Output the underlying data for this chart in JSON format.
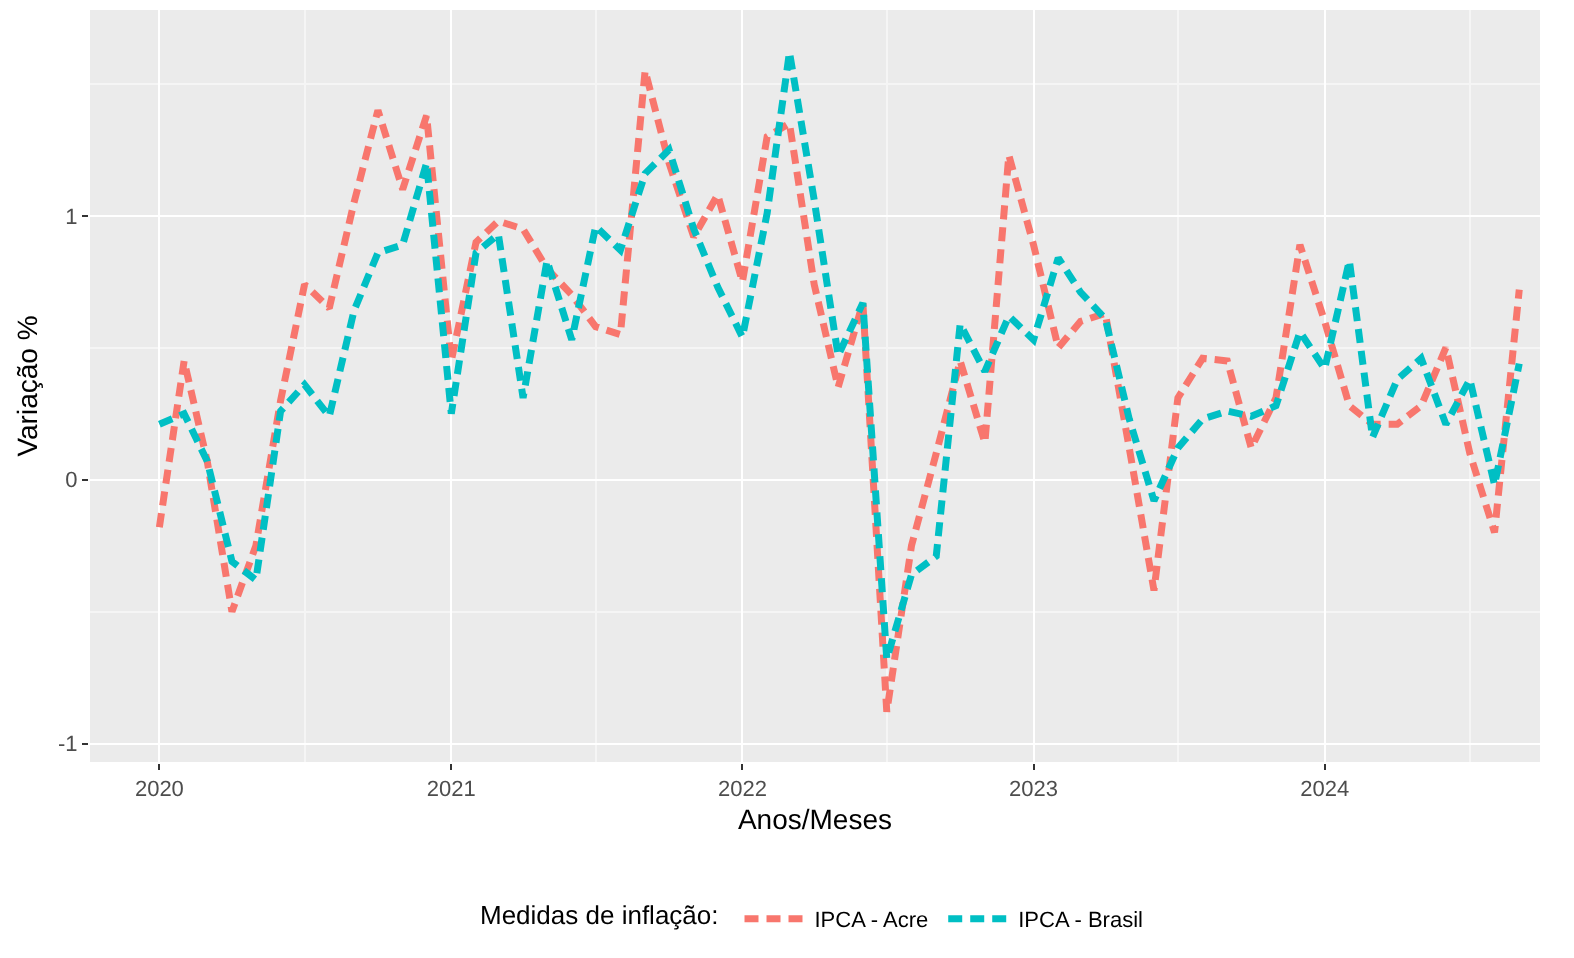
{
  "chart_data": {
    "type": "line",
    "xlabel": "Anos/Meses",
    "ylabel": "Variação %",
    "legend_title": "Medidas de inflação:",
    "x": [
      "2020-01",
      "2020-02",
      "2020-03",
      "2020-04",
      "2020-05",
      "2020-06",
      "2020-07",
      "2020-08",
      "2020-09",
      "2020-10",
      "2020-11",
      "2020-12",
      "2021-01",
      "2021-02",
      "2021-03",
      "2021-04",
      "2021-05",
      "2021-06",
      "2021-07",
      "2021-08",
      "2021-09",
      "2021-10",
      "2021-11",
      "2021-12",
      "2022-01",
      "2022-02",
      "2022-03",
      "2022-04",
      "2022-05",
      "2022-06",
      "2022-07",
      "2022-08",
      "2022-09",
      "2022-10",
      "2022-11",
      "2022-12",
      "2023-01",
      "2023-02",
      "2023-03",
      "2023-04",
      "2023-05",
      "2023-06",
      "2023-07",
      "2023-08",
      "2023-09",
      "2023-10",
      "2023-11",
      "2023-12",
      "2024-01",
      "2024-02",
      "2024-03",
      "2024-04",
      "2024-05",
      "2024-06",
      "2024-07",
      "2024-08",
      "2024-09"
    ],
    "series": [
      {
        "name": "IPCA - Acre",
        "color": "#f8766d",
        "values": [
          -0.18,
          0.45,
          0.07,
          -0.5,
          -0.25,
          0.3,
          0.74,
          0.65,
          1.05,
          1.4,
          1.1,
          1.38,
          0.45,
          0.9,
          0.98,
          0.95,
          0.8,
          0.7,
          0.58,
          0.55,
          1.55,
          1.2,
          0.92,
          1.08,
          0.75,
          1.3,
          1.35,
          0.74,
          0.35,
          0.67,
          -0.88,
          -0.25,
          0.1,
          0.45,
          0.14,
          1.23,
          0.89,
          0.5,
          0.6,
          0.63,
          0.12,
          -0.42,
          0.31,
          0.46,
          0.45,
          0.12,
          0.31,
          0.89,
          0.6,
          0.28,
          0.21,
          0.21,
          0.28,
          0.5,
          0.1,
          -0.2,
          0.72
        ]
      },
      {
        "name": "IPCA - Brasil",
        "color": "#00bfc4",
        "values": [
          0.21,
          0.25,
          0.07,
          -0.31,
          -0.38,
          0.26,
          0.36,
          0.24,
          0.64,
          0.86,
          0.89,
          1.2,
          0.25,
          0.86,
          0.93,
          0.31,
          0.83,
          0.53,
          0.96,
          0.87,
          1.16,
          1.25,
          0.95,
          0.73,
          0.54,
          1.01,
          1.62,
          1.06,
          0.47,
          0.67,
          -0.68,
          -0.36,
          -0.29,
          0.59,
          0.41,
          0.62,
          0.53,
          0.84,
          0.71,
          0.61,
          0.23,
          -0.08,
          0.12,
          0.23,
          0.26,
          0.24,
          0.28,
          0.56,
          0.42,
          0.83,
          0.16,
          0.38,
          0.46,
          0.21,
          0.38,
          -0.02,
          0.44
        ]
      }
    ],
    "xlim": [
      "2019-10-06",
      "2024-09-27"
    ],
    "xticks": [
      {
        "value": "2020-01-01",
        "label": "2020"
      },
      {
        "value": "2021-01-01",
        "label": "2021"
      },
      {
        "value": "2022-01-01",
        "label": "2022"
      },
      {
        "value": "2023-01-01",
        "label": "2023"
      },
      {
        "value": "2024-01-01",
        "label": "2024"
      }
    ],
    "ylim": [
      -1.07,
      1.78
    ],
    "yticks": [
      -1,
      0,
      1
    ],
    "grid": true,
    "legend": "bottom",
    "line_style": "dashed",
    "marker": "none"
  }
}
